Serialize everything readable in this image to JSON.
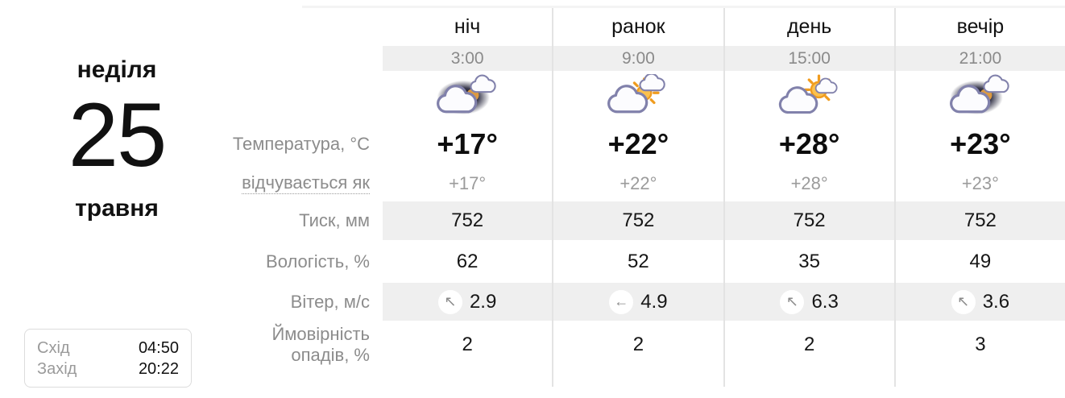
{
  "date_panel": {
    "weekday": "неділя",
    "day": "25",
    "month": "травня"
  },
  "sun_panel": {
    "sunrise_label": "Схід",
    "sunrise_time": "04:50",
    "sunset_label": "Захід",
    "sunset_time": "20:22"
  },
  "row_labels": {
    "temperature": "Температура, °C",
    "feels_like": "відчувається як",
    "pressure": "Тиск, мм",
    "humidity": "Вологість, %",
    "wind": "Вітер, м/с",
    "precipitation_line1": "Ймовірність",
    "precipitation_line2": "опадів, %"
  },
  "columns": [
    {
      "name": "ніч",
      "time": "3:00",
      "icon": "night-cloudy-icon",
      "temperature": "+17°",
      "feels_like": "+17°",
      "pressure": "752",
      "humidity": "62",
      "wind_dir_icon": "arrow-north-west-icon",
      "wind_dir_glyph": "↖",
      "wind_speed": "2.9",
      "precipitation": "2"
    },
    {
      "name": "ранок",
      "time": "9:00",
      "icon": "cloudy-sun-icon",
      "temperature": "+22°",
      "feels_like": "+22°",
      "pressure": "752",
      "humidity": "52",
      "wind_dir_icon": "arrow-west-icon",
      "wind_dir_glyph": "←",
      "wind_speed": "4.9",
      "precipitation": "2"
    },
    {
      "name": "день",
      "time": "15:00",
      "icon": "sun-clouds-icon",
      "temperature": "+28°",
      "feels_like": "+28°",
      "pressure": "752",
      "humidity": "35",
      "wind_dir_icon": "arrow-north-west-icon",
      "wind_dir_glyph": "↖",
      "wind_speed": "6.3",
      "precipitation": "2"
    },
    {
      "name": "вечір",
      "time": "21:00",
      "icon": "night-cloudy-icon",
      "temperature": "+23°",
      "feels_like": "+23°",
      "pressure": "752",
      "humidity": "49",
      "wind_dir_icon": "arrow-north-west-icon",
      "wind_dir_glyph": "↖",
      "wind_speed": "3.6",
      "precipitation": "3"
    }
  ],
  "colors": {
    "shaded_row_bg": "#efefef",
    "divider": "#e3e3e3",
    "muted_text": "#8c8c8c",
    "primary_text": "#111111",
    "sun_orange": "#f09c1f"
  }
}
